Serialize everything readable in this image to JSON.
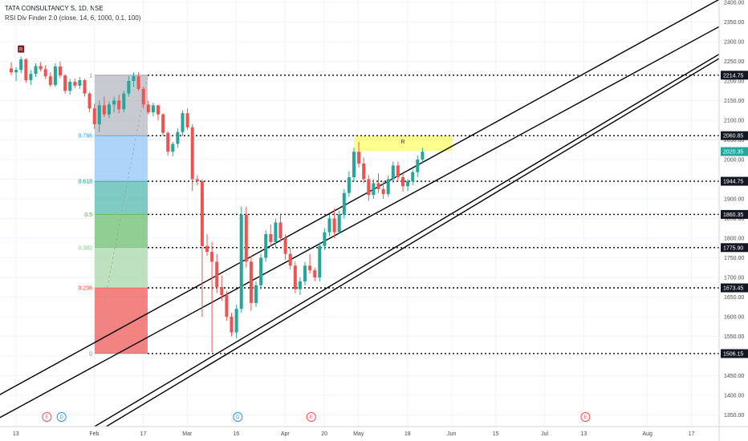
{
  "header": {
    "symbol_line": "TATA CONSULTANCY S, 1D, NSE",
    "indicator_line": "RSI Div Finder 2.0 (close, 14, 6, 1000, 0.1, 100)"
  },
  "colors": {
    "up": "#26a69a",
    "down": "#ef5350",
    "channel": "#000000",
    "zone": "#ffff66",
    "grid": "#f0f3fa"
  },
  "chart_data": {
    "type": "candlestick",
    "ylim": [
      1320,
      2420
    ],
    "y_ticks": [
      "2400.00",
      "2350.00",
      "2300.00",
      "2250.00",
      "2200.00",
      "2150.00",
      "2100.00",
      "2050.00",
      "2000.00",
      "1950.00",
      "1900.00",
      "1850.00",
      "1800.00",
      "1750.00",
      "1700.00",
      "1650.00",
      "1600.00",
      "1550.00",
      "1500.00",
      "1450.00",
      "1400.00",
      "1350.00"
    ],
    "x_ticks": [
      {
        "label": "13",
        "i": -2
      },
      {
        "label": "Feb",
        "i": 14
      },
      {
        "label": "17",
        "i": 24
      },
      {
        "label": "Mar",
        "i": 33
      },
      {
        "label": "16",
        "i": 43
      },
      {
        "label": "Apr",
        "i": 53
      },
      {
        "label": "20",
        "i": 61
      },
      {
        "label": "May",
        "i": 68
      },
      {
        "label": "18",
        "i": 78
      },
      {
        "label": "Jun",
        "i": 87
      },
      {
        "label": "15",
        "i": 96
      },
      {
        "label": "Jul",
        "i": 106
      },
      {
        "label": "13",
        "i": 114
      },
      {
        "label": "Aug",
        "i": 127
      },
      {
        "label": "17",
        "i": 136
      }
    ],
    "candles": [
      [
        2232,
        2248,
        2215,
        2222
      ],
      [
        2222,
        2235,
        2200,
        2228
      ],
      [
        2228,
        2262,
        2220,
        2255
      ],
      [
        2255,
        2258,
        2195,
        2202
      ],
      [
        2202,
        2228,
        2190,
        2218
      ],
      [
        2218,
        2245,
        2210,
        2238
      ],
      [
        2238,
        2248,
        2224,
        2230
      ],
      [
        2230,
        2240,
        2205,
        2212
      ],
      [
        2212,
        2222,
        2185,
        2190
      ],
      [
        2190,
        2245,
        2185,
        2237
      ],
      [
        2237,
        2250,
        2208,
        2214
      ],
      [
        2214,
        2218,
        2168,
        2175
      ],
      [
        2175,
        2205,
        2165,
        2198
      ],
      [
        2198,
        2206,
        2182,
        2188
      ],
      [
        2188,
        2210,
        2180,
        2202
      ],
      [
        2202,
        2205,
        2160,
        2168
      ],
      [
        2168,
        2172,
        2120,
        2130
      ],
      [
        2130,
        2142,
        2078,
        2090
      ],
      [
        2090,
        2150,
        2070,
        2138
      ],
      [
        2138,
        2160,
        2108,
        2115
      ],
      [
        2115,
        2148,
        2105,
        2140
      ],
      [
        2140,
        2160,
        2120,
        2150
      ],
      [
        2150,
        2165,
        2118,
        2128
      ],
      [
        2128,
        2175,
        2120,
        2168
      ],
      [
        2168,
        2212,
        2160,
        2200
      ],
      [
        2200,
        2222,
        2185,
        2212
      ],
      [
        2212,
        2222,
        2175,
        2180
      ],
      [
        2180,
        2185,
        2130,
        2140
      ],
      [
        2140,
        2150,
        2115,
        2120
      ],
      [
        2120,
        2145,
        2110,
        2138
      ],
      [
        2138,
        2140,
        2100,
        2115
      ],
      [
        2115,
        2118,
        2060,
        2068
      ],
      [
        2068,
        2072,
        2010,
        2020
      ],
      [
        2020,
        2045,
        2008,
        2040
      ],
      [
        2040,
        2080,
        2030,
        2070
      ],
      [
        2070,
        2125,
        2060,
        2118
      ],
      [
        2118,
        2130,
        2075,
        2082
      ],
      [
        2082,
        2090,
        1920,
        1950
      ],
      [
        1950,
        1960,
        1935,
        1945
      ],
      [
        1945,
        1950,
        1600,
        1780
      ],
      [
        1780,
        1810,
        1755,
        1765
      ],
      [
        1765,
        1790,
        1510,
        1740
      ],
      [
        1740,
        1760,
        1660,
        1675
      ],
      [
        1675,
        1705,
        1640,
        1655
      ],
      [
        1655,
        1665,
        1590,
        1600
      ],
      [
        1600,
        1610,
        1550,
        1560
      ],
      [
        1560,
        1630,
        1545,
        1620
      ],
      [
        1620,
        1880,
        1610,
        1860
      ],
      [
        1860,
        1880,
        1725,
        1740
      ],
      [
        1740,
        1755,
        1615,
        1635
      ],
      [
        1635,
        1690,
        1625,
        1680
      ],
      [
        1680,
        1760,
        1670,
        1750
      ],
      [
        1750,
        1820,
        1740,
        1810
      ],
      [
        1810,
        1835,
        1780,
        1790
      ],
      [
        1790,
        1850,
        1775,
        1840
      ],
      [
        1840,
        1860,
        1790,
        1800
      ],
      [
        1800,
        1810,
        1745,
        1760
      ],
      [
        1760,
        1775,
        1720,
        1730
      ],
      [
        1730,
        1740,
        1660,
        1670
      ],
      [
        1670,
        1700,
        1655,
        1690
      ],
      [
        1690,
        1740,
        1680,
        1730
      ],
      [
        1730,
        1760,
        1710,
        1718
      ],
      [
        1718,
        1725,
        1690,
        1700
      ],
      [
        1700,
        1790,
        1690,
        1780
      ],
      [
        1780,
        1825,
        1770,
        1815
      ],
      [
        1815,
        1860,
        1805,
        1850
      ],
      [
        1850,
        1875,
        1800,
        1815
      ],
      [
        1815,
        1870,
        1810,
        1860
      ],
      [
        1860,
        1925,
        1850,
        1915
      ],
      [
        1915,
        1970,
        1905,
        1955
      ],
      [
        1955,
        2030,
        1945,
        2020
      ],
      [
        2020,
        2045,
        1980,
        1990
      ],
      [
        1990,
        2005,
        1940,
        1950
      ],
      [
        1950,
        1960,
        1895,
        1910
      ],
      [
        1910,
        1950,
        1900,
        1940
      ],
      [
        1940,
        1965,
        1915,
        1925
      ],
      [
        1925,
        1945,
        1900,
        1912
      ],
      [
        1912,
        1960,
        1905,
        1950
      ],
      [
        1950,
        1995,
        1940,
        1985
      ],
      [
        1985,
        1995,
        1945,
        1955
      ],
      [
        1955,
        1965,
        1918,
        1932
      ],
      [
        1932,
        1950,
        1920,
        1945
      ],
      [
        1945,
        1975,
        1935,
        1968
      ],
      [
        1968,
        2010,
        1955,
        2000
      ],
      [
        2000,
        2030,
        1990,
        2020
      ]
    ],
    "fib_levels": [
      {
        "label": "1",
        "price": 2214.75,
        "fill": "#b2b5be"
      },
      {
        "label": "0.786",
        "price": 2060.85,
        "fill": "#8fc5f7"
      },
      {
        "label": "0.618",
        "price": 1944.75,
        "fill": "#4db6ac"
      },
      {
        "label": "0.5",
        "price": 1860.35,
        "fill": "#66bb6a"
      },
      {
        "label": "0.382",
        "price": 1775.9,
        "fill": "#a5d6a7"
      },
      {
        "label": "0.236",
        "price": 1673.45,
        "fill": "#ef5350"
      },
      {
        "label": "0",
        "price": 1506.15,
        "fill": ""
      }
    ],
    "fib_label_colors": [
      "#787b86",
      "#2196f3",
      "#009688",
      "#4caf50",
      "#81c784",
      "#f44336",
      "#787b86"
    ],
    "horizontal_levels": [
      "2214.75",
      "2060.85",
      "1944.75",
      "1860.35",
      "1775.90",
      "1673.45",
      "1506.15"
    ],
    "last_price": "2020.35",
    "zone": {
      "label": "R",
      "price_top": 2060.85,
      "price_bottom": 2022,
      "i_start": 70,
      "i_end": 90
    },
    "channels": [
      {
        "i1": -9,
        "p1": 1356,
        "i2": 154,
        "p2": 2472
      },
      {
        "i1": -9,
        "p1": 1298,
        "i2": 154,
        "p2": 2402
      },
      {
        "i1": 14,
        "p1": 1298,
        "i2": 161,
        "p2": 2390
      },
      {
        "i1": 14,
        "p1": 1280,
        "i2": 161,
        "p2": 2380
      }
    ],
    "events": [
      {
        "label": "E",
        "i": 4,
        "kind": "earnings"
      },
      {
        "label": "D",
        "i": 7,
        "kind": "dividend"
      },
      {
        "label": "D",
        "i": 43,
        "kind": "dividend"
      },
      {
        "label": "E",
        "i": 58,
        "kind": "earnings"
      },
      {
        "label": "E",
        "i": 114,
        "kind": "earnings"
      }
    ],
    "signal_label": "R"
  }
}
